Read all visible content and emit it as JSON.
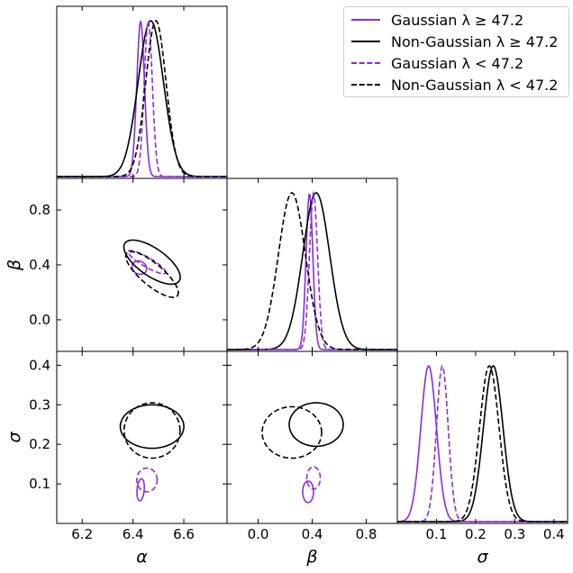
{
  "chart_data": {
    "type": "corner-plot",
    "parameters": [
      {
        "key": "alpha",
        "label": "α",
        "ticks": [
          "6.2",
          "6.4",
          "6.6"
        ],
        "tick_values": [
          6.2,
          6.4,
          6.6
        ],
        "range": [
          6.1,
          6.77
        ]
      },
      {
        "key": "beta",
        "label": "β",
        "ticks": [
          "0.0",
          "0.4",
          "0.8"
        ],
        "tick_values": [
          0.0,
          0.4,
          0.8
        ],
        "range": [
          -0.23,
          1.03
        ]
      },
      {
        "key": "sigma",
        "label": "σ",
        "ticks": [
          "0.1",
          "0.2",
          "0.3",
          "0.4"
        ],
        "tick_values": [
          0.1,
          0.2,
          0.3,
          0.4
        ],
        "range": [
          0.0,
          0.435
        ]
      }
    ],
    "series": [
      {
        "name": "Gaussian λ ≥ 47.2",
        "color": "#8a2be2",
        "dash": "solid",
        "means": {
          "alpha": 6.43,
          "beta": 0.38,
          "sigma": 0.08
        },
        "sds": {
          "alpha": 0.015,
          "beta": 0.025,
          "sigma": 0.02
        },
        "ellipses": {
          "alpha-beta": {
            "cx": 6.425,
            "cy": 0.38,
            "rx": 0.025,
            "ry": 0.055,
            "angle": 60
          },
          "alpha-sigma": {
            "cx": 6.43,
            "cy": 0.085,
            "rx": 0.014,
            "ry": 0.028,
            "angle": -5
          },
          "beta-sigma": {
            "cx": 0.37,
            "cy": 0.08,
            "rx": 0.04,
            "ry": 0.027,
            "angle": 0
          }
        }
      },
      {
        "name": "Non-Gaussian λ ≥ 47.2",
        "color": "#000000",
        "dash": "solid",
        "means": {
          "alpha": 6.47,
          "beta": 0.43,
          "sigma": 0.245
        },
        "sds": {
          "alpha": 0.05,
          "beta": 0.1,
          "sigma": 0.025
        },
        "ellipses": {
          "alpha-beta": {
            "cx": 6.475,
            "cy": 0.42,
            "rx": 0.13,
            "ry": 0.1,
            "angle": -35
          },
          "alpha-sigma": {
            "cx": 6.475,
            "cy": 0.245,
            "rx": 0.125,
            "ry": 0.055,
            "angle": 0
          },
          "beta-sigma": {
            "cx": 0.43,
            "cy": 0.25,
            "rx": 0.2,
            "ry": 0.055,
            "angle": 0
          }
        }
      },
      {
        "name": "Gaussian λ < 47.2",
        "color": "#8a2be2",
        "dash": "dashed",
        "means": {
          "alpha": 6.46,
          "beta": 0.41,
          "sigma": 0.115
        },
        "sds": {
          "alpha": 0.016,
          "beta": 0.03,
          "sigma": 0.015
        },
        "ellipses": {
          "alpha-beta": {
            "cx": 6.455,
            "cy": 0.42,
            "rx": 0.085,
            "ry": 0.035,
            "angle": -30
          },
          "alpha-sigma": {
            "cx": 6.455,
            "cy": 0.11,
            "rx": 0.04,
            "ry": 0.03,
            "angle": 0
          },
          "beta-sigma": {
            "cx": 0.41,
            "cy": 0.115,
            "rx": 0.05,
            "ry": 0.028,
            "angle": 0
          }
        }
      },
      {
        "name": "Non-Gaussian λ < 47.2",
        "color": "#000000",
        "dash": "dashed",
        "means": {
          "alpha": 6.49,
          "beta": 0.25,
          "sigma": 0.235
        },
        "sds": {
          "alpha": 0.04,
          "beta": 0.1,
          "sigma": 0.025
        },
        "ellipses": {
          "alpha-beta": {
            "cx": 6.475,
            "cy": 0.33,
            "rx": 0.13,
            "ry": 0.08,
            "angle": -40
          },
          "alpha-sigma": {
            "cx": 6.475,
            "cy": 0.235,
            "rx": 0.11,
            "ry": 0.07,
            "angle": 0
          },
          "beta-sigma": {
            "cx": 0.25,
            "cy": 0.23,
            "rx": 0.22,
            "ry": 0.065,
            "angle": 0
          }
        }
      }
    ],
    "legend_position": "top-right",
    "grid": false
  }
}
